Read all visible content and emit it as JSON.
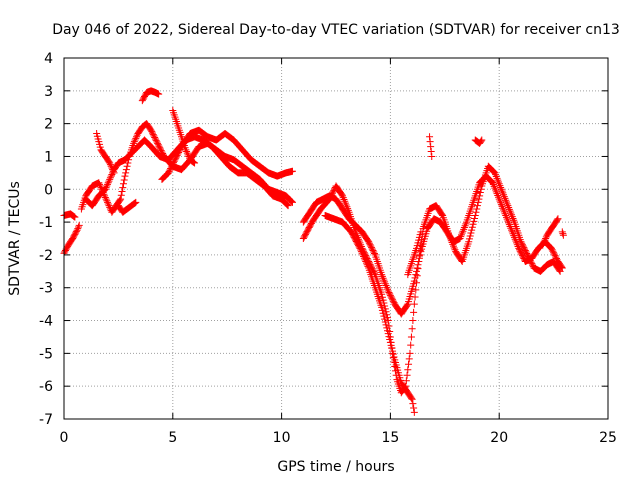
{
  "chart_data": {
    "type": "scatter",
    "title": "Day 046 of 2022, Sidereal Day-to-day VTEC variation (SDTVAR) for receiver cn13",
    "xlabel": "GPS time / hours",
    "ylabel": "SDTVAR / TECUs",
    "xlim": [
      0,
      25
    ],
    "ylim": [
      -7,
      4
    ],
    "x_ticks": [
      "0",
      "5",
      "10",
      "15",
      "20",
      "25"
    ],
    "y_ticks": [
      "-7",
      "-6",
      "-5",
      "-4",
      "-3",
      "-2",
      "-1",
      "0",
      "1",
      "2",
      "3",
      "4"
    ],
    "grid": true,
    "marker": "+",
    "series": [
      {
        "name": "SDTVAR",
        "color": "#ff0000",
        "tracks": [
          [
            [
              0.0,
              -0.8
            ],
            [
              0.3,
              -0.75
            ],
            [
              0.5,
              -0.85
            ]
          ],
          [
            [
              0.0,
              -1.95
            ],
            [
              0.2,
              -1.7
            ],
            [
              0.4,
              -1.5
            ],
            [
              0.6,
              -1.25
            ],
            [
              0.7,
              -1.1
            ]
          ],
          [
            [
              0.8,
              -0.6
            ],
            [
              1.0,
              -0.2
            ],
            [
              1.3,
              0.1
            ],
            [
              1.6,
              0.2
            ],
            [
              1.8,
              -0.1
            ],
            [
              2.0,
              -0.4
            ],
            [
              2.2,
              -0.7
            ],
            [
              2.4,
              -0.5
            ],
            [
              2.6,
              -0.3
            ],
            [
              2.8,
              0.4
            ],
            [
              3.0,
              1.0
            ],
            [
              3.2,
              1.4
            ],
            [
              3.4,
              1.7
            ],
            [
              3.6,
              1.9
            ],
            [
              3.8,
              2.0
            ],
            [
              4.0,
              1.8
            ],
            [
              4.3,
              1.4
            ],
            [
              4.6,
              1.0
            ],
            [
              5.0,
              0.7
            ],
            [
              5.4,
              0.6
            ],
            [
              5.8,
              0.9
            ],
            [
              6.2,
              1.3
            ],
            [
              6.6,
              1.4
            ],
            [
              7.0,
              1.2
            ],
            [
              7.4,
              1.0
            ],
            [
              7.8,
              0.9
            ],
            [
              8.2,
              0.7
            ],
            [
              8.6,
              0.5
            ],
            [
              9.0,
              0.3
            ],
            [
              9.4,
              0.0
            ],
            [
              9.8,
              -0.1
            ],
            [
              10.2,
              -0.2
            ],
            [
              10.5,
              -0.4
            ]
          ],
          [
            [
              1.0,
              -0.3
            ],
            [
              1.3,
              -0.5
            ],
            [
              1.6,
              -0.2
            ],
            [
              1.9,
              0.0
            ],
            [
              2.1,
              0.3
            ],
            [
              2.3,
              0.6
            ],
            [
              2.5,
              0.8
            ],
            [
              2.8,
              0.9
            ],
            [
              3.1,
              1.1
            ],
            [
              3.4,
              1.3
            ],
            [
              3.7,
              1.5
            ],
            [
              4.0,
              1.3
            ],
            [
              4.4,
              1.0
            ],
            [
              4.8,
              0.9
            ],
            [
              5.2,
              1.2
            ],
            [
              5.6,
              1.5
            ],
            [
              6.0,
              1.6
            ],
            [
              6.4,
              1.5
            ],
            [
              6.8,
              1.3
            ],
            [
              7.2,
              1.0
            ],
            [
              7.6,
              0.7
            ],
            [
              8.0,
              0.5
            ],
            [
              8.4,
              0.5
            ],
            [
              8.8,
              0.3
            ],
            [
              9.2,
              0.1
            ],
            [
              9.6,
              -0.2
            ],
            [
              10.0,
              -0.3
            ],
            [
              10.3,
              -0.5
            ]
          ],
          [
            [
              1.5,
              1.7
            ],
            [
              1.7,
              1.2
            ],
            [
              1.9,
              1.0
            ],
            [
              2.1,
              0.8
            ],
            [
              2.3,
              0.5
            ]
          ],
          [
            [
              2.5,
              -0.5
            ],
            [
              2.7,
              -0.7
            ],
            [
              2.9,
              -0.6
            ],
            [
              3.1,
              -0.5
            ],
            [
              3.3,
              -0.4
            ]
          ],
          [
            [
              3.6,
              2.7
            ],
            [
              3.8,
              2.95
            ],
            [
              4.0,
              3.0
            ],
            [
              4.2,
              2.95
            ],
            [
              4.35,
              2.9
            ]
          ],
          [
            [
              4.5,
              0.3
            ],
            [
              4.8,
              0.5
            ],
            [
              5.1,
              0.9
            ],
            [
              5.4,
              1.3
            ],
            [
              5.8,
              1.7
            ],
            [
              6.2,
              1.8
            ],
            [
              6.6,
              1.6
            ],
            [
              7.0,
              1.5
            ],
            [
              7.4,
              1.7
            ],
            [
              7.8,
              1.5
            ],
            [
              8.2,
              1.2
            ],
            [
              8.6,
              0.9
            ],
            [
              9.0,
              0.7
            ],
            [
              9.4,
              0.5
            ],
            [
              9.8,
              0.4
            ],
            [
              10.2,
              0.5
            ],
            [
              10.5,
              0.55
            ]
          ],
          [
            [
              5.0,
              2.4
            ],
            [
              5.2,
              2.0
            ],
            [
              5.4,
              1.6
            ],
            [
              5.6,
              1.2
            ],
            [
              5.8,
              0.9
            ],
            [
              6.0,
              0.8
            ]
          ],
          [
            [
              11.0,
              -1.0
            ],
            [
              11.3,
              -0.7
            ],
            [
              11.6,
              -0.4
            ],
            [
              11.9,
              -0.3
            ],
            [
              12.2,
              -0.2
            ],
            [
              12.5,
              -0.3
            ],
            [
              12.8,
              -0.6
            ],
            [
              13.1,
              -0.9
            ],
            [
              13.4,
              -1.1
            ],
            [
              13.7,
              -1.3
            ],
            [
              14.0,
              -1.6
            ],
            [
              14.3,
              -2.0
            ],
            [
              14.6,
              -2.6
            ],
            [
              14.9,
              -3.1
            ],
            [
              15.2,
              -3.5
            ],
            [
              15.5,
              -3.8
            ],
            [
              15.8,
              -3.5
            ],
            [
              16.1,
              -2.8
            ],
            [
              16.4,
              -1.9
            ],
            [
              16.7,
              -1.2
            ],
            [
              17.0,
              -0.9
            ],
            [
              17.3,
              -1.0
            ],
            [
              17.6,
              -1.3
            ],
            [
              17.9,
              -1.6
            ],
            [
              18.2,
              -1.5
            ],
            [
              18.5,
              -1.0
            ],
            [
              18.8,
              -0.4
            ],
            [
              19.1,
              0.2
            ],
            [
              19.4,
              0.4
            ],
            [
              19.7,
              0.2
            ],
            [
              20.0,
              -0.3
            ],
            [
              20.3,
              -0.8
            ],
            [
              20.6,
              -1.3
            ],
            [
              20.9,
              -1.8
            ],
            [
              21.2,
              -2.2
            ],
            [
              21.5,
              -2.1
            ],
            [
              21.8,
              -1.8
            ],
            [
              22.1,
              -1.6
            ],
            [
              22.4,
              -1.8
            ],
            [
              22.7,
              -2.2
            ],
            [
              22.9,
              -2.4
            ]
          ],
          [
            [
              11.0,
              -1.5
            ],
            [
              11.4,
              -1.0
            ],
            [
              11.8,
              -0.6
            ],
            [
              12.2,
              -0.3
            ],
            [
              12.5,
              0.1
            ],
            [
              12.8,
              -0.2
            ],
            [
              13.1,
              -0.7
            ],
            [
              13.4,
              -1.3
            ],
            [
              13.7,
              -1.8
            ],
            [
              14.0,
              -2.2
            ],
            [
              14.3,
              -2.6
            ],
            [
              14.6,
              -3.2
            ],
            [
              14.9,
              -4.0
            ],
            [
              15.1,
              -5.0
            ],
            [
              15.3,
              -5.8
            ],
            [
              15.5,
              -6.2
            ],
            [
              15.7,
              -6.0
            ],
            [
              15.9,
              -5.0
            ],
            [
              16.1,
              -3.5
            ],
            [
              16.3,
              -2.2
            ],
            [
              16.5,
              -1.2
            ],
            [
              16.8,
              -0.6
            ],
            [
              17.1,
              -0.5
            ],
            [
              17.4,
              -0.8
            ],
            [
              17.7,
              -1.4
            ],
            [
              18.0,
              -1.9
            ],
            [
              18.3,
              -2.2
            ],
            [
              18.6,
              -1.6
            ],
            [
              18.9,
              -0.8
            ],
            [
              19.2,
              0.1
            ],
            [
              19.5,
              0.7
            ],
            [
              19.8,
              0.5
            ],
            [
              20.1,
              0.0
            ],
            [
              20.4,
              -0.5
            ],
            [
              20.7,
              -1.0
            ],
            [
              21.0,
              -1.6
            ],
            [
              21.3,
              -2.0
            ],
            [
              21.6,
              -2.4
            ],
            [
              21.9,
              -2.5
            ],
            [
              22.2,
              -2.3
            ],
            [
              22.5,
              -2.2
            ],
            [
              22.8,
              -2.5
            ]
          ],
          [
            [
              12.0,
              -0.8
            ],
            [
              12.4,
              -0.9
            ],
            [
              12.8,
              -1.0
            ],
            [
              13.2,
              -1.3
            ],
            [
              13.6,
              -1.8
            ],
            [
              14.0,
              -2.4
            ],
            [
              14.3,
              -3.0
            ],
            [
              14.6,
              -3.6
            ],
            [
              14.9,
              -4.4
            ],
            [
              15.2,
              -5.2
            ],
            [
              15.5,
              -5.9
            ],
            [
              15.8,
              -6.2
            ],
            [
              16.0,
              -6.4
            ],
            [
              16.1,
              -6.8
            ]
          ],
          [
            [
              15.8,
              -2.6
            ],
            [
              16.0,
              -2.2
            ],
            [
              16.2,
              -1.8
            ],
            [
              16.4,
              -1.3
            ]
          ],
          [
            [
              16.8,
              1.6
            ],
            [
              16.85,
              1.3
            ],
            [
              16.9,
              1.0
            ]
          ],
          [
            [
              18.9,
              1.5
            ],
            [
              19.1,
              1.4
            ],
            [
              19.2,
              1.5
            ]
          ],
          [
            [
              22.0,
              -1.7
            ],
            [
              22.2,
              -1.4
            ],
            [
              22.4,
              -1.2
            ],
            [
              22.6,
              -1.0
            ],
            [
              22.7,
              -0.9
            ]
          ],
          [
            [
              22.9,
              -1.3
            ],
            [
              22.95,
              -1.4
            ]
          ]
        ]
      }
    ]
  }
}
